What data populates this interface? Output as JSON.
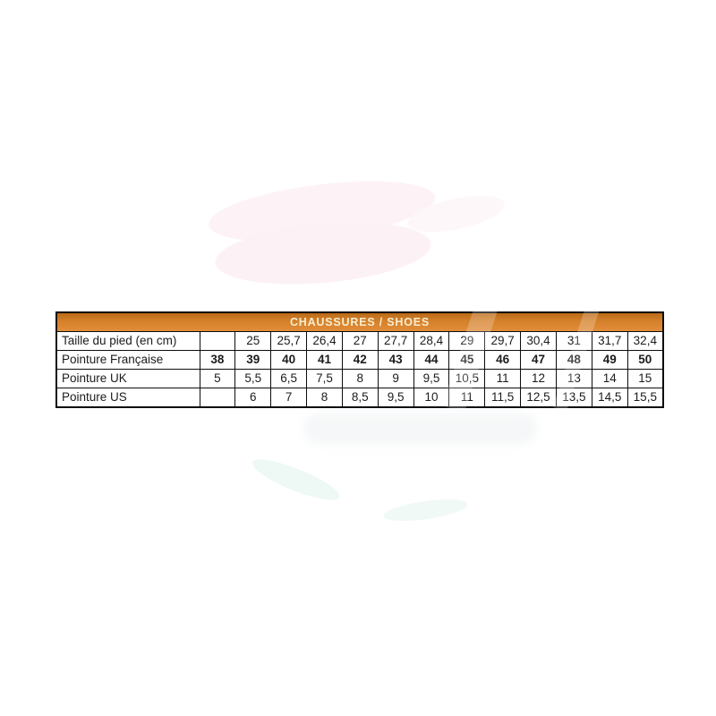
{
  "colors": {
    "header_orange_top": "#bb6b18",
    "header_orange_mid": "#d5812b",
    "header_orange_bottom": "#e08d3a",
    "header_text": "#f7eecf",
    "table_border": "#0d0d0d",
    "cell_text": "#1c1c1c",
    "page_background": "#ffffff"
  },
  "chart_data": {
    "type": "table",
    "title": "CHAUSSURES / SHOES",
    "rows": [
      {
        "label": "Taille du pied (en cm)",
        "bold_values": false,
        "values": [
          "",
          "25",
          "25,7",
          "26,4",
          "27",
          "27,7",
          "28,4",
          "29",
          "29,7",
          "30,4",
          "31",
          "31,7",
          "32,4"
        ]
      },
      {
        "label": "Pointure Française",
        "bold_values": true,
        "values": [
          "38",
          "39",
          "40",
          "41",
          "42",
          "43",
          "44",
          "45",
          "46",
          "47",
          "48",
          "49",
          "50"
        ]
      },
      {
        "label": "Pointure UK",
        "bold_values": false,
        "values": [
          "5",
          "5,5",
          "6,5",
          "7,5",
          "8",
          "9",
          "9,5",
          "10,5",
          "11",
          "12",
          "13",
          "14",
          "15"
        ]
      },
      {
        "label": "Pointure US",
        "bold_values": false,
        "values": [
          "",
          "6",
          "7",
          "8",
          "8,5",
          "9,5",
          "10",
          "11",
          "11,5",
          "12,5",
          "13,5",
          "14,5",
          "15,5"
        ]
      }
    ]
  }
}
